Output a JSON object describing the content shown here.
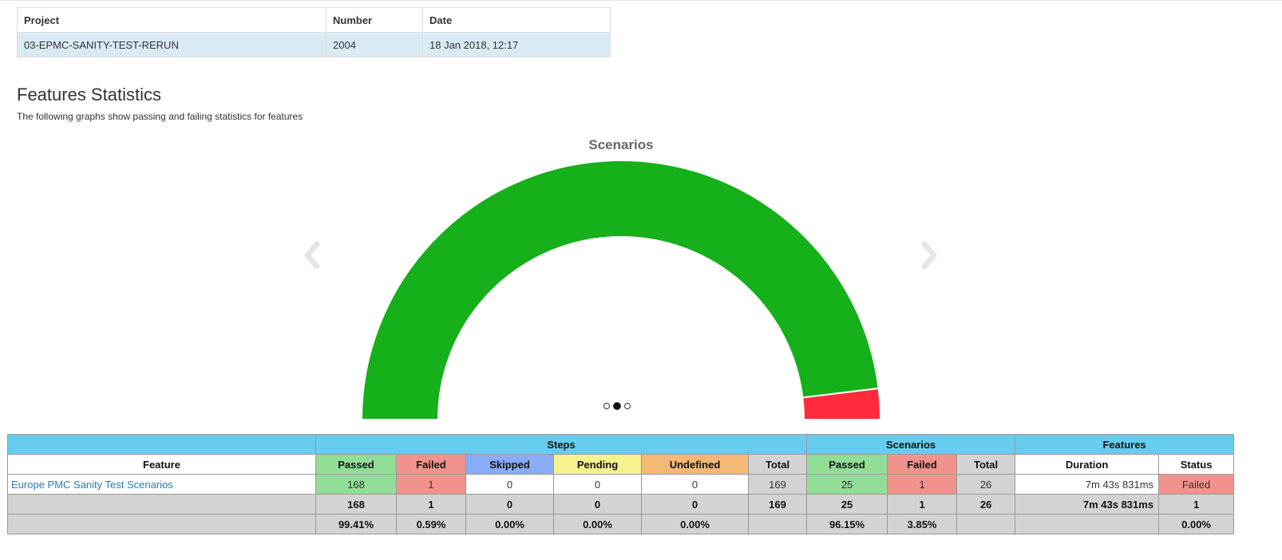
{
  "report": {
    "headers": {
      "project": "Project",
      "number": "Number",
      "date": "Date"
    },
    "project": "03-EPMC-SANITY-TEST-RERUN",
    "number": "2004",
    "date": "18 Jan 2018, 12:17"
  },
  "section": {
    "title": "Features Statistics",
    "description": "The following graphs show passing and failing statistics for features"
  },
  "chart_data": {
    "type": "pie",
    "style": "half-donut",
    "title": "Scenarios",
    "categories": [
      "Passed",
      "Failed"
    ],
    "values": [
      25,
      1
    ],
    "colors": [
      "#15b01a",
      "#ff2b3a"
    ]
  },
  "carousel": {
    "slides": 3,
    "active": 1
  },
  "stats": {
    "groups": {
      "steps": "Steps",
      "scenarios": "Scenarios",
      "features": "Features"
    },
    "headers": {
      "feature": "Feature",
      "passed": "Passed",
      "failed": "Failed",
      "skipped": "Skipped",
      "pending": "Pending",
      "undefined": "Undefined",
      "total": "Total",
      "sc_passed": "Passed",
      "sc_failed": "Failed",
      "sc_total": "Total",
      "duration": "Duration",
      "status": "Status"
    },
    "row": {
      "feature": "Europe PMC Sanity Test Scenarios",
      "passed": "168",
      "failed": "1",
      "skipped": "0",
      "pending": "0",
      "undefined": "0",
      "total": "169",
      "sc_passed": "25",
      "sc_failed": "1",
      "sc_total": "26",
      "duration": "7m 43s 831ms",
      "status": "Failed"
    },
    "totals": {
      "passed": "168",
      "failed": "1",
      "skipped": "0",
      "pending": "0",
      "undefined": "0",
      "total": "169",
      "sc_passed": "25",
      "sc_failed": "1",
      "sc_total": "26",
      "duration": "7m 43s 831ms",
      "status": "1"
    },
    "percents": {
      "passed": "99.41%",
      "failed": "0.59%",
      "skipped": "0.00%",
      "pending": "0.00%",
      "undefined": "0.00%",
      "sc_passed": "96.15%",
      "sc_failed": "3.85%",
      "status": "0.00%"
    }
  }
}
